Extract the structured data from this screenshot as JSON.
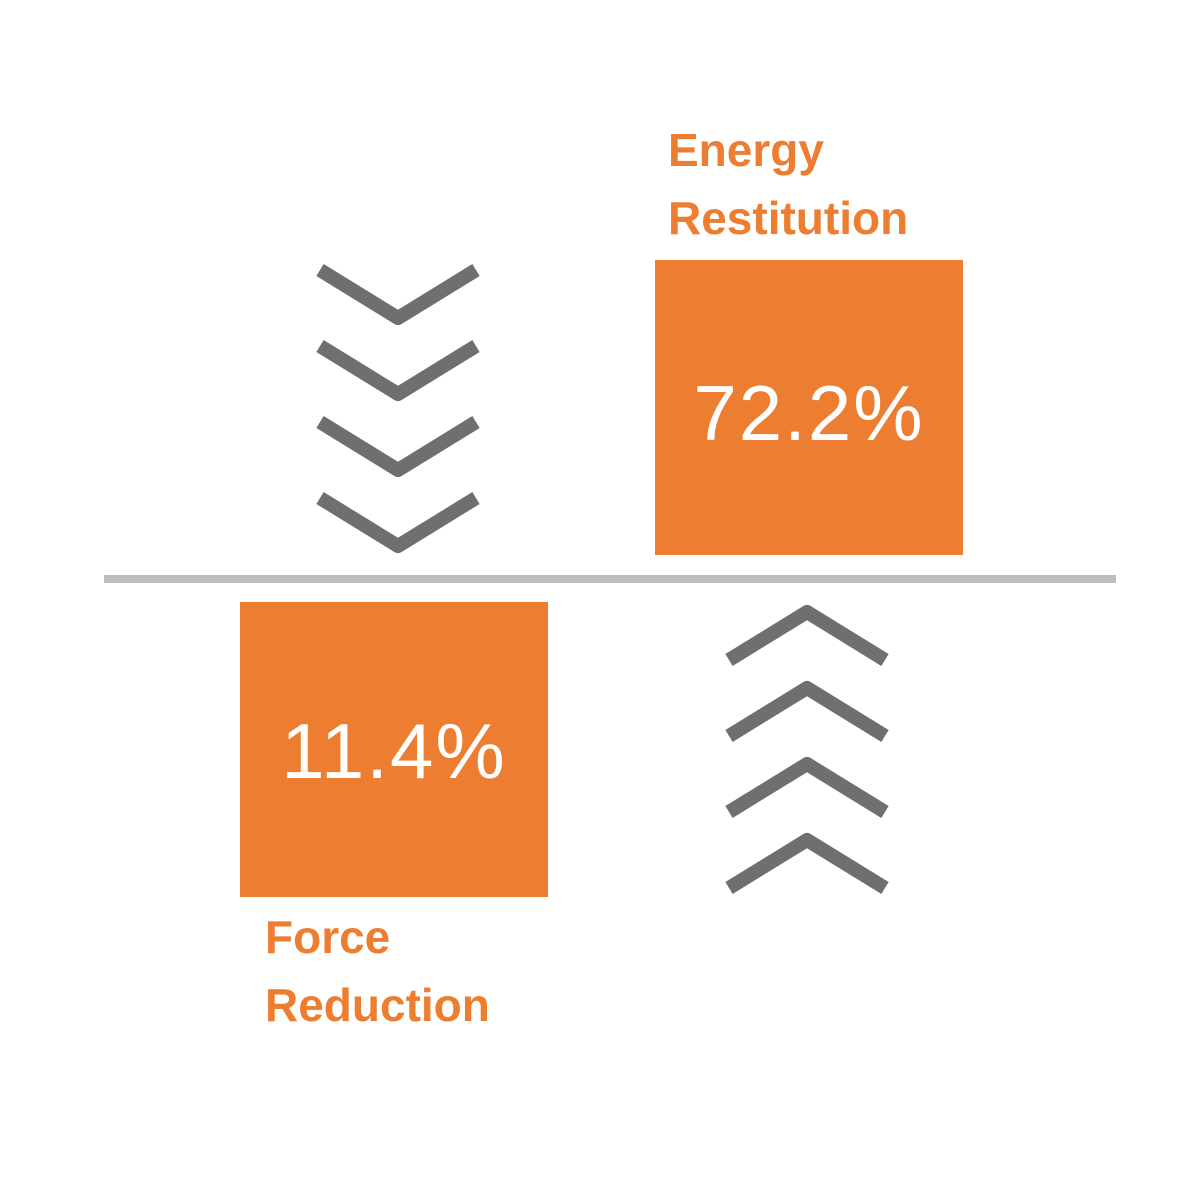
{
  "top": {
    "label": "Energy Restitution",
    "value": "72.2%"
  },
  "bottom": {
    "label": "Force Reduction",
    "value": "11.4%"
  }
}
